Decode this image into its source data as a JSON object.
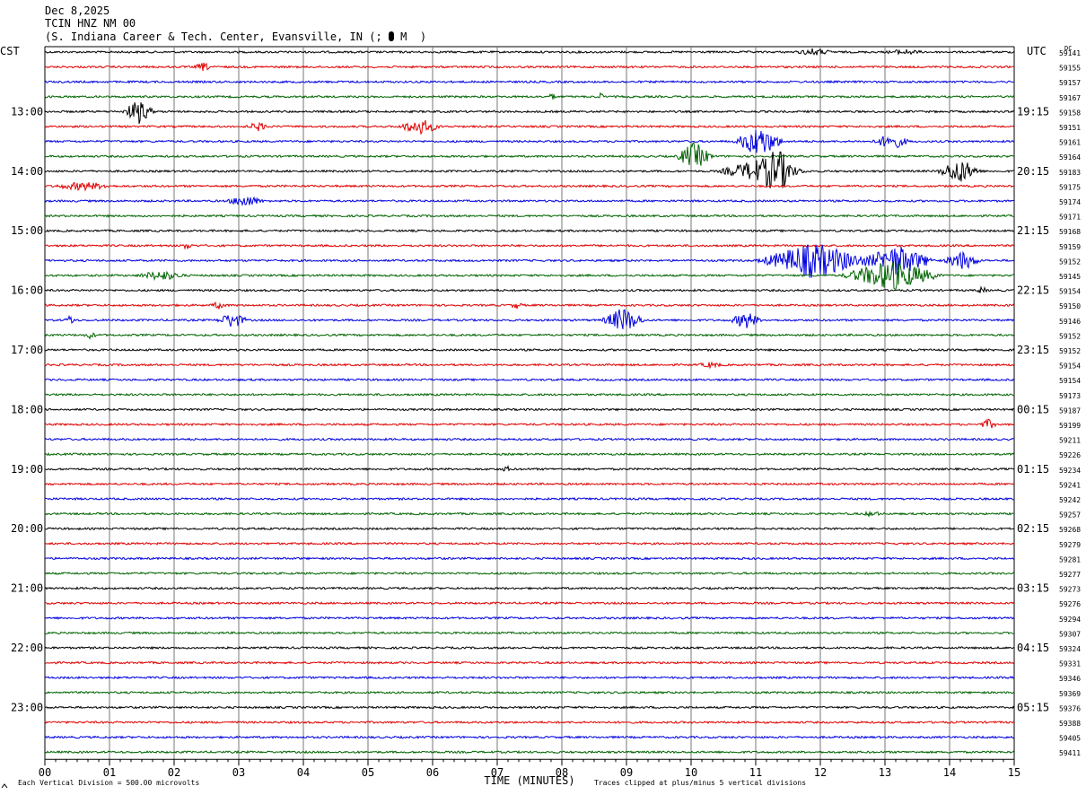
{
  "header": {
    "date": "Dec 8,2025",
    "station": "TCIN HNZ NM 00",
    "location": "(S. Indiana Career & Tech. Center, Evansville, IN (;",
    "location_tail": "M  )"
  },
  "chart_data": {
    "type": "line",
    "left_axis_title": "CST",
    "right_axis_title": "UTC",
    "dc_label": "DC",
    "xlabel": "TIME (MINUTES)",
    "xlim": [
      0,
      15
    ],
    "x_ticks": [
      "00",
      "01",
      "02",
      "03",
      "04",
      "05",
      "06",
      "07",
      "08",
      "09",
      "10",
      "11",
      "12",
      "13",
      "14",
      "15"
    ],
    "trace_colors": [
      "#000000",
      "#e00000",
      "#0000e0",
      "#006400"
    ],
    "left_hour_labels": [
      "13:00",
      "14:00",
      "15:00",
      "16:00",
      "17:00",
      "18:00",
      "19:00",
      "20:00",
      "21:00",
      "22:00",
      "23:00"
    ],
    "right_hour_labels": [
      "19:15",
      "20:15",
      "21:15",
      "22:15",
      "23:15",
      "00:15",
      "01:15",
      "02:15",
      "03:15",
      "04:15",
      "05:15"
    ],
    "hour_label_first_trace": 4,
    "dc_offsets": [
      59141,
      59155,
      59157,
      59167,
      59158,
      59151,
      59161,
      59164,
      59183,
      59175,
      59174,
      59171,
      59168,
      59159,
      59152,
      59145,
      59154,
      59150,
      59146,
      59152,
      59152,
      59154,
      59154,
      59173,
      59187,
      59199,
      59211,
      59226,
      59234,
      59241,
      59242,
      59257,
      59268,
      59279,
      59281,
      59277,
      59273,
      59276,
      59294,
      59307,
      59324,
      59331,
      59346,
      59369,
      59376,
      59388,
      59405,
      59411
    ],
    "events": [
      {
        "trace": 0,
        "minute": 11.9,
        "amp": 0.4,
        "dur": 0.3
      },
      {
        "trace": 0,
        "minute": 13.3,
        "amp": 0.3,
        "dur": 0.3
      },
      {
        "trace": 1,
        "minute": 2.45,
        "amp": 0.5,
        "dur": 0.15
      },
      {
        "trace": 3,
        "minute": 7.85,
        "amp": 0.5,
        "dur": 0.05
      },
      {
        "trace": 3,
        "minute": 8.6,
        "amp": 0.5,
        "dur": 0.05
      },
      {
        "trace": 4,
        "minute": 1.45,
        "amp": 1.6,
        "dur": 0.25
      },
      {
        "trace": 5,
        "minute": 3.3,
        "amp": 0.5,
        "dur": 0.2
      },
      {
        "trace": 5,
        "minute": 5.8,
        "amp": 1.0,
        "dur": 0.35
      },
      {
        "trace": 6,
        "minute": 11.05,
        "amp": 2.0,
        "dur": 0.4
      },
      {
        "trace": 6,
        "minute": 13.1,
        "amp": 1.0,
        "dur": 0.3
      },
      {
        "trace": 7,
        "minute": 10.05,
        "amp": 1.8,
        "dur": 0.3
      },
      {
        "trace": 8,
        "minute": 11.1,
        "amp": 1.6,
        "dur": 0.7
      },
      {
        "trace": 8,
        "minute": 11.35,
        "amp": 2.0,
        "dur": 0.25
      },
      {
        "trace": 8,
        "minute": 14.15,
        "amp": 1.6,
        "dur": 0.35
      },
      {
        "trace": 9,
        "minute": 0.6,
        "amp": 0.5,
        "dur": 0.5
      },
      {
        "trace": 10,
        "minute": 3.1,
        "amp": 0.7,
        "dur": 0.3
      },
      {
        "trace": 13,
        "minute": 2.2,
        "amp": 0.4,
        "dur": 0.1
      },
      {
        "trace": 14,
        "minute": 11.9,
        "amp": 2.4,
        "dur": 0.9
      },
      {
        "trace": 14,
        "minute": 13.2,
        "amp": 2.0,
        "dur": 0.6
      },
      {
        "trace": 14,
        "minute": 14.2,
        "amp": 1.2,
        "dur": 0.3
      },
      {
        "trace": 15,
        "minute": 1.8,
        "amp": 0.6,
        "dur": 0.4
      },
      {
        "trace": 15,
        "minute": 13.1,
        "amp": 2.0,
        "dur": 0.8
      },
      {
        "trace": 16,
        "minute": 14.5,
        "amp": 0.4,
        "dur": 0.1
      },
      {
        "trace": 17,
        "minute": 2.7,
        "amp": 0.4,
        "dur": 0.15
      },
      {
        "trace": 17,
        "minute": 7.3,
        "amp": 0.4,
        "dur": 0.1
      },
      {
        "trace": 18,
        "minute": 0.4,
        "amp": 0.6,
        "dur": 0.1
      },
      {
        "trace": 18,
        "minute": 2.9,
        "amp": 1.0,
        "dur": 0.25
      },
      {
        "trace": 18,
        "minute": 8.95,
        "amp": 1.6,
        "dur": 0.35
      },
      {
        "trace": 18,
        "minute": 10.85,
        "amp": 1.1,
        "dur": 0.25
      },
      {
        "trace": 19,
        "minute": 0.7,
        "amp": 0.4,
        "dur": 0.1
      },
      {
        "trace": 21,
        "minute": 10.3,
        "amp": 0.3,
        "dur": 0.2
      },
      {
        "trace": 25,
        "minute": 14.6,
        "amp": 0.6,
        "dur": 0.15
      },
      {
        "trace": 28,
        "minute": 7.15,
        "amp": 0.3,
        "dur": 0.1
      },
      {
        "trace": 31,
        "minute": 12.8,
        "amp": 0.3,
        "dur": 0.15
      }
    ],
    "footer_left": "Each Vertical Division =  500.00 microvolts",
    "footer_right": "Traces clipped at plus/minus 5 vertical divisions"
  }
}
